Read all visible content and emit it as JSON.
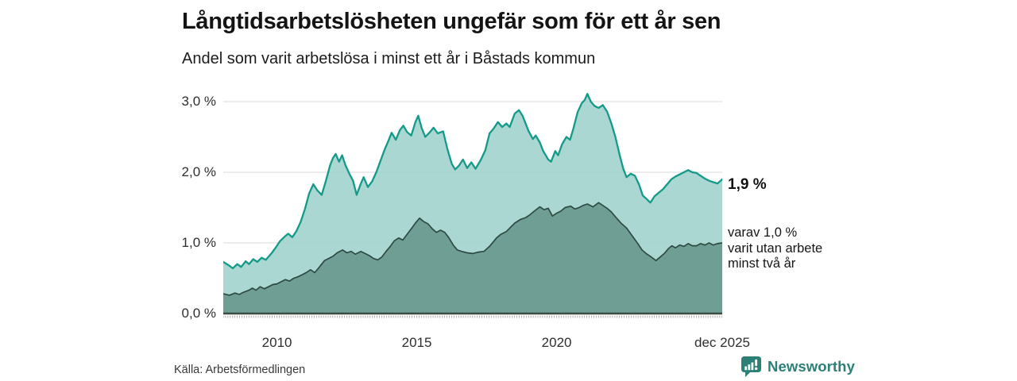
{
  "header": {
    "title": "Långtidsarbetslösheten ungefär som för ett år sen",
    "subtitle": "Andel som varit arbetslösa i minst ett år i Båstads kommun"
  },
  "annotations": {
    "end_label_total": "1,9 %",
    "end_label_subset_lines": [
      "varav 1,0 %",
      "varit utan arbete",
      "minst två år"
    ]
  },
  "footer": {
    "source": "Källa: Arbetsförmedlingen",
    "brand": "Newsworthy"
  },
  "colors": {
    "total_line": "#149a89",
    "total_fill": "#9ed2cb",
    "subset_line": "#2e4b43",
    "subset_fill": "#6f9e95",
    "gridline": "#d8d8d8",
    "axis_line": "#3e4b45",
    "month_tick": "#9b9b9b",
    "brand_teal": "#2c8077"
  },
  "chart_data": {
    "type": "area",
    "title": "Långtidsarbetslösheten ungefär som för ett år sen",
    "subtitle": "Andel som varit arbetslösa i minst ett år i Båstads kommun",
    "xlabel": "",
    "ylabel": "",
    "unit": "%",
    "grid": "horizontal",
    "legend_position": "end-of-line-labels",
    "x_range": [
      2008.08,
      2025.92
    ],
    "y_range": [
      0,
      3.3
    ],
    "y_ticks": [
      {
        "label": "0,0 %",
        "value": 0
      },
      {
        "label": "1,0 %",
        "value": 1
      },
      {
        "label": "2,0 %",
        "value": 2
      },
      {
        "label": "3,0 %",
        "value": 3
      }
    ],
    "x_ticks": [
      {
        "label": "2010",
        "value": 2010
      },
      {
        "label": "2015",
        "value": 2015
      },
      {
        "label": "2020",
        "value": 2020
      },
      {
        "label": "dec 2025",
        "value": 2025.92
      }
    ],
    "series": [
      {
        "id": "arbetslosa-minst-ett-ar",
        "name": "Andel arbetslösa minst ett år",
        "end_value": 1.9,
        "end_value_label": "1,9 %",
        "points": [
          [
            2008.08,
            0.73
          ],
          [
            2008.25,
            0.69
          ],
          [
            2008.42,
            0.64
          ],
          [
            2008.58,
            0.7
          ],
          [
            2008.72,
            0.66
          ],
          [
            2008.88,
            0.74
          ],
          [
            2009.0,
            0.7
          ],
          [
            2009.15,
            0.77
          ],
          [
            2009.3,
            0.73
          ],
          [
            2009.45,
            0.79
          ],
          [
            2009.6,
            0.76
          ],
          [
            2009.8,
            0.85
          ],
          [
            2009.95,
            0.93
          ],
          [
            2010.1,
            1.02
          ],
          [
            2010.25,
            1.08
          ],
          [
            2010.4,
            1.13
          ],
          [
            2010.55,
            1.08
          ],
          [
            2010.7,
            1.17
          ],
          [
            2010.85,
            1.3
          ],
          [
            2011.0,
            1.48
          ],
          [
            2011.15,
            1.7
          ],
          [
            2011.3,
            1.83
          ],
          [
            2011.45,
            1.74
          ],
          [
            2011.6,
            1.68
          ],
          [
            2011.75,
            1.88
          ],
          [
            2011.9,
            2.1
          ],
          [
            2012.0,
            2.2
          ],
          [
            2012.1,
            2.26
          ],
          [
            2012.22,
            2.15
          ],
          [
            2012.33,
            2.24
          ],
          [
            2012.45,
            2.1
          ],
          [
            2012.6,
            1.97
          ],
          [
            2012.72,
            1.88
          ],
          [
            2012.85,
            1.68
          ],
          [
            2013.0,
            1.84
          ],
          [
            2013.1,
            1.93
          ],
          [
            2013.25,
            1.79
          ],
          [
            2013.4,
            1.87
          ],
          [
            2013.55,
            2.0
          ],
          [
            2013.7,
            2.16
          ],
          [
            2013.85,
            2.32
          ],
          [
            2014.0,
            2.46
          ],
          [
            2014.1,
            2.56
          ],
          [
            2014.25,
            2.46
          ],
          [
            2014.4,
            2.6
          ],
          [
            2014.52,
            2.66
          ],
          [
            2014.65,
            2.57
          ],
          [
            2014.8,
            2.52
          ],
          [
            2014.95,
            2.71
          ],
          [
            2015.05,
            2.8
          ],
          [
            2015.18,
            2.62
          ],
          [
            2015.3,
            2.5
          ],
          [
            2015.45,
            2.56
          ],
          [
            2015.6,
            2.63
          ],
          [
            2015.75,
            2.55
          ],
          [
            2015.94,
            2.58
          ],
          [
            2016.1,
            2.32
          ],
          [
            2016.25,
            2.12
          ],
          [
            2016.37,
            2.04
          ],
          [
            2016.5,
            2.09
          ],
          [
            2016.65,
            2.18
          ],
          [
            2016.8,
            2.06
          ],
          [
            2016.95,
            2.14
          ],
          [
            2017.1,
            2.05
          ],
          [
            2017.28,
            2.17
          ],
          [
            2017.45,
            2.31
          ],
          [
            2017.6,
            2.55
          ],
          [
            2017.75,
            2.62
          ],
          [
            2017.9,
            2.71
          ],
          [
            2018.05,
            2.64
          ],
          [
            2018.2,
            2.69
          ],
          [
            2018.32,
            2.64
          ],
          [
            2018.5,
            2.83
          ],
          [
            2018.65,
            2.88
          ],
          [
            2018.78,
            2.8
          ],
          [
            2019.0,
            2.58
          ],
          [
            2019.15,
            2.47
          ],
          [
            2019.25,
            2.52
          ],
          [
            2019.4,
            2.42
          ],
          [
            2019.52,
            2.3
          ],
          [
            2019.7,
            2.18
          ],
          [
            2019.8,
            2.15
          ],
          [
            2019.95,
            2.3
          ],
          [
            2020.05,
            2.24
          ],
          [
            2020.2,
            2.4
          ],
          [
            2020.35,
            2.5
          ],
          [
            2020.48,
            2.46
          ],
          [
            2020.6,
            2.62
          ],
          [
            2020.75,
            2.85
          ],
          [
            2020.9,
            2.98
          ],
          [
            2021.0,
            3.02
          ],
          [
            2021.1,
            3.11
          ],
          [
            2021.22,
            3.0
          ],
          [
            2021.35,
            2.94
          ],
          [
            2021.5,
            2.91
          ],
          [
            2021.65,
            2.95
          ],
          [
            2021.8,
            2.86
          ],
          [
            2021.95,
            2.7
          ],
          [
            2022.1,
            2.5
          ],
          [
            2022.25,
            2.25
          ],
          [
            2022.38,
            2.05
          ],
          [
            2022.5,
            1.93
          ],
          [
            2022.65,
            1.98
          ],
          [
            2022.8,
            1.95
          ],
          [
            2022.95,
            1.82
          ],
          [
            2023.08,
            1.67
          ],
          [
            2023.22,
            1.62
          ],
          [
            2023.35,
            1.57
          ],
          [
            2023.5,
            1.66
          ],
          [
            2023.65,
            1.71
          ],
          [
            2023.8,
            1.76
          ],
          [
            2023.95,
            1.83
          ],
          [
            2024.1,
            1.9
          ],
          [
            2024.25,
            1.94
          ],
          [
            2024.4,
            1.97
          ],
          [
            2024.55,
            2.0
          ],
          [
            2024.7,
            2.03
          ],
          [
            2024.85,
            2.0
          ],
          [
            2025.0,
            1.99
          ],
          [
            2025.15,
            1.95
          ],
          [
            2025.3,
            1.91
          ],
          [
            2025.45,
            1.88
          ],
          [
            2025.6,
            1.86
          ],
          [
            2025.75,
            1.84
          ],
          [
            2025.92,
            1.9
          ]
        ]
      },
      {
        "id": "utan-arbete-minst-tva-ar",
        "name": "varav utan arbete minst två år",
        "end_value": 1.0,
        "end_value_label": "varav 1,0 % varit utan arbete minst två år",
        "points": [
          [
            2008.08,
            0.28
          ],
          [
            2008.3,
            0.26
          ],
          [
            2008.5,
            0.29
          ],
          [
            2008.65,
            0.27
          ],
          [
            2008.8,
            0.3
          ],
          [
            2009.0,
            0.33
          ],
          [
            2009.12,
            0.36
          ],
          [
            2009.25,
            0.33
          ],
          [
            2009.4,
            0.38
          ],
          [
            2009.55,
            0.35
          ],
          [
            2009.7,
            0.38
          ],
          [
            2009.85,
            0.41
          ],
          [
            2010.0,
            0.42
          ],
          [
            2010.15,
            0.45
          ],
          [
            2010.3,
            0.48
          ],
          [
            2010.45,
            0.46
          ],
          [
            2010.6,
            0.5
          ],
          [
            2010.75,
            0.52
          ],
          [
            2010.9,
            0.55
          ],
          [
            2011.05,
            0.58
          ],
          [
            2011.2,
            0.62
          ],
          [
            2011.35,
            0.58
          ],
          [
            2011.5,
            0.65
          ],
          [
            2011.7,
            0.75
          ],
          [
            2011.85,
            0.78
          ],
          [
            2012.0,
            0.81
          ],
          [
            2012.15,
            0.86
          ],
          [
            2012.35,
            0.9
          ],
          [
            2012.5,
            0.86
          ],
          [
            2012.65,
            0.88
          ],
          [
            2012.8,
            0.84
          ],
          [
            2013.0,
            0.88
          ],
          [
            2013.15,
            0.85
          ],
          [
            2013.3,
            0.82
          ],
          [
            2013.45,
            0.78
          ],
          [
            2013.6,
            0.76
          ],
          [
            2013.75,
            0.8
          ],
          [
            2013.9,
            0.88
          ],
          [
            2014.05,
            0.95
          ],
          [
            2014.2,
            1.03
          ],
          [
            2014.35,
            1.07
          ],
          [
            2014.5,
            1.04
          ],
          [
            2014.65,
            1.12
          ],
          [
            2014.8,
            1.2
          ],
          [
            2014.95,
            1.28
          ],
          [
            2015.1,
            1.35
          ],
          [
            2015.25,
            1.3
          ],
          [
            2015.4,
            1.27
          ],
          [
            2015.55,
            1.2
          ],
          [
            2015.7,
            1.15
          ],
          [
            2015.85,
            1.18
          ],
          [
            2016.0,
            1.15
          ],
          [
            2016.15,
            1.07
          ],
          [
            2016.3,
            0.97
          ],
          [
            2016.45,
            0.9
          ],
          [
            2016.6,
            0.88
          ],
          [
            2016.8,
            0.86
          ],
          [
            2017.0,
            0.85
          ],
          [
            2017.2,
            0.87
          ],
          [
            2017.4,
            0.88
          ],
          [
            2017.6,
            0.95
          ],
          [
            2017.85,
            1.07
          ],
          [
            2018.0,
            1.12
          ],
          [
            2018.2,
            1.16
          ],
          [
            2018.35,
            1.22
          ],
          [
            2018.5,
            1.28
          ],
          [
            2018.7,
            1.33
          ],
          [
            2018.9,
            1.36
          ],
          [
            2019.05,
            1.4
          ],
          [
            2019.2,
            1.45
          ],
          [
            2019.4,
            1.51
          ],
          [
            2019.55,
            1.47
          ],
          [
            2019.7,
            1.49
          ],
          [
            2019.85,
            1.38
          ],
          [
            2020.0,
            1.42
          ],
          [
            2020.15,
            1.45
          ],
          [
            2020.3,
            1.5
          ],
          [
            2020.5,
            1.52
          ],
          [
            2020.65,
            1.48
          ],
          [
            2020.8,
            1.5
          ],
          [
            2020.95,
            1.53
          ],
          [
            2021.1,
            1.55
          ],
          [
            2021.3,
            1.51
          ],
          [
            2021.5,
            1.57
          ],
          [
            2021.65,
            1.53
          ],
          [
            2021.8,
            1.49
          ],
          [
            2021.95,
            1.44
          ],
          [
            2022.1,
            1.37
          ],
          [
            2022.3,
            1.28
          ],
          [
            2022.5,
            1.21
          ],
          [
            2022.7,
            1.1
          ],
          [
            2022.9,
            0.99
          ],
          [
            2023.05,
            0.9
          ],
          [
            2023.2,
            0.85
          ],
          [
            2023.35,
            0.81
          ],
          [
            2023.55,
            0.75
          ],
          [
            2023.7,
            0.8
          ],
          [
            2023.85,
            0.85
          ],
          [
            2024.0,
            0.92
          ],
          [
            2024.12,
            0.96
          ],
          [
            2024.25,
            0.93
          ],
          [
            2024.4,
            0.97
          ],
          [
            2024.55,
            0.95
          ],
          [
            2024.7,
            0.99
          ],
          [
            2024.85,
            0.96
          ],
          [
            2025.0,
            0.96
          ],
          [
            2025.15,
            0.99
          ],
          [
            2025.3,
            0.97
          ],
          [
            2025.45,
            1.0
          ],
          [
            2025.6,
            0.97
          ],
          [
            2025.75,
            0.99
          ],
          [
            2025.92,
            1.0
          ]
        ]
      }
    ]
  }
}
